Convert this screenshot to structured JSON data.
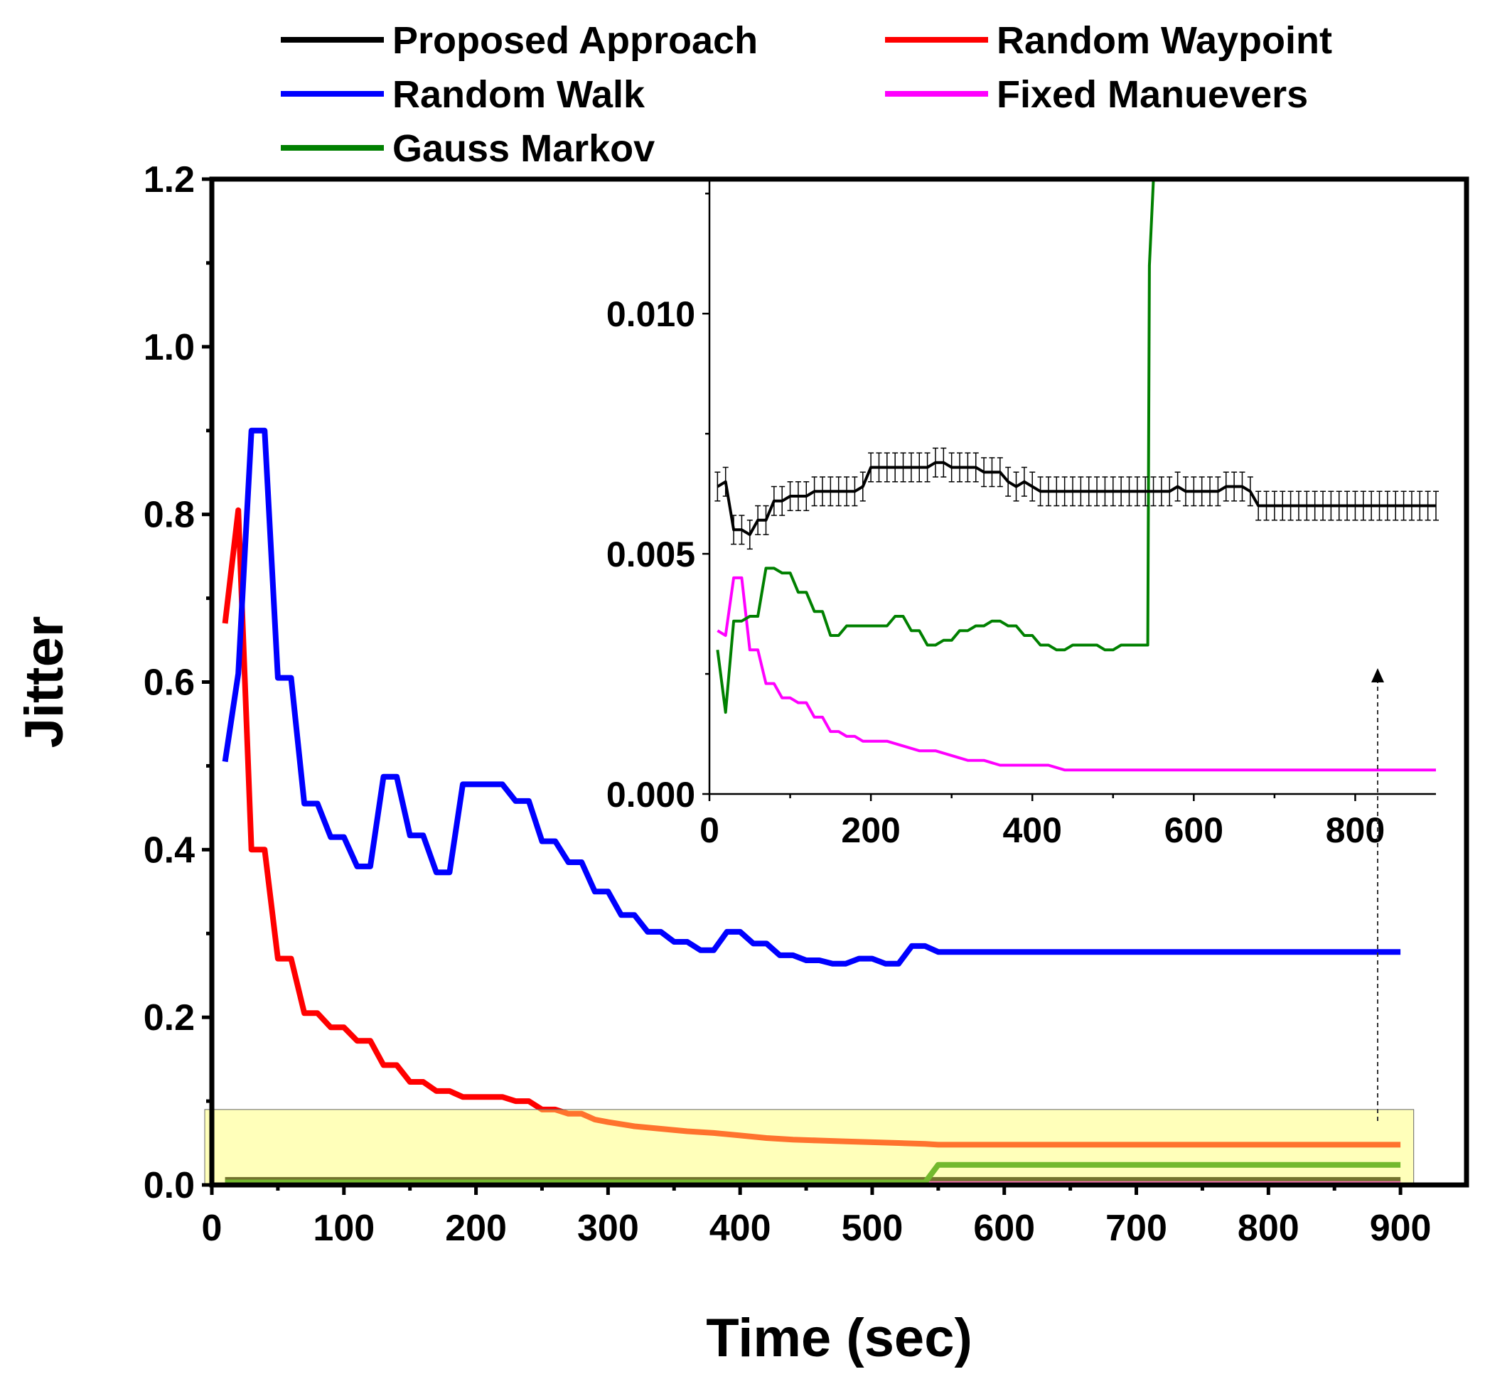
{
  "chart_data": [
    {
      "type": "line",
      "id": "main",
      "xlabel": "Time (sec)",
      "ylabel": "Jitter",
      "xlim": [
        0,
        950
      ],
      "ylim": [
        0,
        1.2
      ],
      "xticks": [
        "0",
        "100",
        "200",
        "300",
        "400",
        "500",
        "600",
        "700",
        "800",
        "900"
      ],
      "yticks": [
        "0.0",
        "0.2",
        "0.4",
        "0.6",
        "0.8",
        "1.0",
        "1.2"
      ],
      "highlight": {
        "x": [
          0,
          910
        ],
        "y": [
          0,
          0.09
        ],
        "color": "#ffff66"
      },
      "series": [
        {
          "name": "Random Walk",
          "color": "#0000ff",
          "x": [
            10,
            20,
            30,
            40,
            50,
            60,
            70,
            80,
            90,
            100,
            110,
            120,
            130,
            140,
            150,
            160,
            170,
            180,
            190,
            200,
            210,
            220,
            230,
            240,
            250,
            260,
            270,
            280,
            290,
            300,
            310,
            320,
            330,
            340,
            350,
            360,
            370,
            380,
            390,
            400,
            410,
            420,
            430,
            440,
            450,
            460,
            470,
            480,
            490,
            500,
            510,
            520,
            530,
            540,
            550,
            900
          ],
          "y": [
            0.505,
            0.61,
            0.9,
            0.9,
            0.605,
            0.605,
            0.455,
            0.455,
            0.415,
            0.415,
            0.38,
            0.38,
            0.487,
            0.487,
            0.417,
            0.417,
            0.373,
            0.373,
            0.478,
            0.478,
            0.478,
            0.478,
            0.458,
            0.458,
            0.41,
            0.41,
            0.385,
            0.385,
            0.35,
            0.35,
            0.322,
            0.322,
            0.302,
            0.302,
            0.29,
            0.29,
            0.28,
            0.28,
            0.302,
            0.302,
            0.288,
            0.288,
            0.274,
            0.274,
            0.268,
            0.268,
            0.264,
            0.264,
            0.27,
            0.27,
            0.264,
            0.264,
            0.285,
            0.285,
            0.278,
            0.278
          ]
        },
        {
          "name": "Random Waypoint",
          "color": "#ff0000",
          "x": [
            10,
            20,
            30,
            40,
            50,
            60,
            70,
            80,
            90,
            100,
            110,
            120,
            130,
            140,
            150,
            160,
            170,
            180,
            190,
            200,
            210,
            220,
            230,
            240,
            250,
            260,
            270,
            280,
            290,
            300,
            320,
            340,
            360,
            380,
            400,
            420,
            440,
            460,
            480,
            500,
            520,
            540,
            550,
            900
          ],
          "y": [
            0.67,
            0.805,
            0.4,
            0.4,
            0.27,
            0.27,
            0.205,
            0.205,
            0.188,
            0.188,
            0.172,
            0.172,
            0.143,
            0.143,
            0.123,
            0.123,
            0.112,
            0.112,
            0.105,
            0.105,
            0.105,
            0.105,
            0.1,
            0.1,
            0.09,
            0.09,
            0.085,
            0.085,
            0.078,
            0.075,
            0.07,
            0.067,
            0.064,
            0.062,
            0.059,
            0.056,
            0.054,
            0.053,
            0.052,
            0.051,
            0.05,
            0.049,
            0.048,
            0.048
          ]
        },
        {
          "name": "Gauss Markov",
          "color": "#008000",
          "x": [
            10,
            540,
            550,
            900
          ],
          "y": [
            0.003,
            0.003,
            0.024,
            0.024
          ]
        },
        {
          "name": "Fixed Manuevers",
          "color": "#ff00ff",
          "x": [
            10,
            900
          ],
          "y": [
            0.001,
            0.001
          ]
        },
        {
          "name": "Proposed Approach",
          "color": "#000000",
          "x": [
            10,
            900
          ],
          "y": [
            0.006,
            0.006
          ]
        }
      ]
    },
    {
      "type": "line",
      "id": "inset",
      "xlim": [
        0,
        900
      ],
      "ylim": [
        0,
        0.0128
      ],
      "xticks": [
        "0",
        "200",
        "400",
        "600",
        "800"
      ],
      "yticks": [
        "0.000",
        "0.005",
        "0.010"
      ],
      "series": [
        {
          "name": "Proposed Approach",
          "color": "#000000",
          "error_bars": true,
          "x": [
            10,
            20,
            30,
            40,
            50,
            60,
            70,
            80,
            90,
            100,
            110,
            120,
            130,
            140,
            150,
            160,
            170,
            180,
            190,
            200,
            210,
            220,
            230,
            240,
            250,
            260,
            270,
            280,
            290,
            300,
            310,
            320,
            330,
            340,
            350,
            360,
            370,
            380,
            390,
            400,
            410,
            420,
            430,
            440,
            450,
            460,
            470,
            480,
            490,
            500,
            510,
            520,
            530,
            540,
            550,
            560,
            570,
            580,
            590,
            600,
            610,
            620,
            630,
            640,
            650,
            660,
            670,
            680,
            690,
            700,
            710,
            720,
            730,
            740,
            750,
            760,
            770,
            780,
            790,
            800,
            810,
            820,
            830,
            840,
            850,
            860,
            870,
            880,
            890,
            900
          ],
          "y": [
            0.0064,
            0.0065,
            0.0055,
            0.0055,
            0.0054,
            0.0057,
            0.0057,
            0.0061,
            0.0061,
            0.0062,
            0.0062,
            0.0062,
            0.0063,
            0.0063,
            0.0063,
            0.0063,
            0.0063,
            0.0063,
            0.0064,
            0.0068,
            0.0068,
            0.0068,
            0.0068,
            0.0068,
            0.0068,
            0.0068,
            0.0068,
            0.0069,
            0.0069,
            0.0068,
            0.0068,
            0.0068,
            0.0068,
            0.0067,
            0.0067,
            0.0067,
            0.0065,
            0.0064,
            0.0065,
            0.0064,
            0.0063,
            0.0063,
            0.0063,
            0.0063,
            0.0063,
            0.0063,
            0.0063,
            0.0063,
            0.0063,
            0.0063,
            0.0063,
            0.0063,
            0.0063,
            0.0063,
            0.0063,
            0.0063,
            0.0063,
            0.0064,
            0.0063,
            0.0063,
            0.0063,
            0.0063,
            0.0063,
            0.0064,
            0.0064,
            0.0064,
            0.0063,
            0.006,
            0.006,
            0.006,
            0.006,
            0.006,
            0.006,
            0.006,
            0.006,
            0.006,
            0.006,
            0.006,
            0.006,
            0.006,
            0.006,
            0.006,
            0.006,
            0.006,
            0.006,
            0.006,
            0.006,
            0.006,
            0.006,
            0.006
          ],
          "err": 0.0003
        },
        {
          "name": "Gauss Markov",
          "color": "#008000",
          "x": [
            10,
            20,
            30,
            40,
            50,
            60,
            70,
            80,
            90,
            100,
            110,
            120,
            130,
            140,
            150,
            160,
            170,
            180,
            190,
            200,
            210,
            220,
            230,
            240,
            250,
            260,
            270,
            280,
            290,
            300,
            310,
            320,
            330,
            340,
            350,
            360,
            370,
            380,
            390,
            400,
            410,
            420,
            430,
            440,
            450,
            460,
            470,
            480,
            490,
            500,
            510,
            520,
            530,
            540,
            543,
            545,
            550
          ],
          "y": [
            0.003,
            0.0017,
            0.0036,
            0.0036,
            0.0037,
            0.0037,
            0.0047,
            0.0047,
            0.0046,
            0.0046,
            0.0042,
            0.0042,
            0.0038,
            0.0038,
            0.0033,
            0.0033,
            0.0035,
            0.0035,
            0.0035,
            0.0035,
            0.0035,
            0.0035,
            0.0037,
            0.0037,
            0.0034,
            0.0034,
            0.0031,
            0.0031,
            0.0032,
            0.0032,
            0.0034,
            0.0034,
            0.0035,
            0.0035,
            0.0036,
            0.0036,
            0.0035,
            0.0035,
            0.0033,
            0.0033,
            0.0031,
            0.0031,
            0.003,
            0.003,
            0.0031,
            0.0031,
            0.0031,
            0.0031,
            0.003,
            0.003,
            0.0031,
            0.0031,
            0.0031,
            0.0031,
            0.0031,
            0.011,
            0.0128
          ]
        },
        {
          "name": "Fixed Manuevers",
          "color": "#ff00ff",
          "x": [
            10,
            20,
            30,
            40,
            50,
            60,
            70,
            80,
            90,
            100,
            110,
            120,
            130,
            140,
            150,
            160,
            170,
            180,
            190,
            200,
            220,
            240,
            260,
            280,
            300,
            320,
            340,
            360,
            380,
            400,
            420,
            440,
            460,
            480,
            500,
            520,
            540,
            560,
            600,
            700,
            800,
            900
          ],
          "y": [
            0.0034,
            0.0033,
            0.0045,
            0.0045,
            0.003,
            0.003,
            0.0023,
            0.0023,
            0.002,
            0.002,
            0.0019,
            0.0019,
            0.0016,
            0.0016,
            0.0013,
            0.0013,
            0.0012,
            0.0012,
            0.0011,
            0.0011,
            0.0011,
            0.001,
            0.0009,
            0.0009,
            0.0008,
            0.0007,
            0.0007,
            0.0006,
            0.0006,
            0.0006,
            0.0006,
            0.0005,
            0.0005,
            0.0005,
            0.0005,
            0.0005,
            0.0005,
            0.0005,
            0.0005,
            0.0005,
            0.0005,
            0.0005
          ]
        }
      ]
    }
  ],
  "legend": [
    {
      "label": "Proposed Approach",
      "color": "#000000"
    },
    {
      "label": "Random Walk",
      "color": "#0000ff"
    },
    {
      "label": "Gauss Markov",
      "color": "#008000"
    },
    {
      "label": "Random Waypoint",
      "color": "#ff0000"
    },
    {
      "label": "Fixed Manuevers",
      "color": "#ff00ff"
    }
  ]
}
